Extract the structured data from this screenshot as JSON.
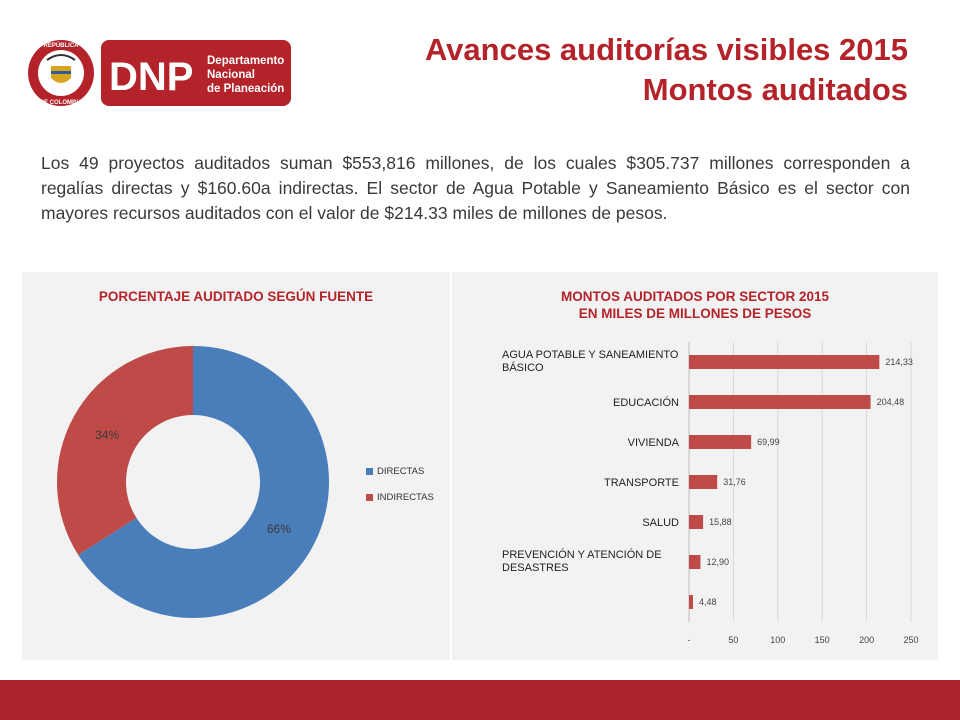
{
  "header": {
    "title_line1": "Avances auditorías visibles 2015",
    "title_line2": "Montos auditados",
    "logo": {
      "brand": "DNP",
      "line1": "Departamento",
      "line2": "Nacional",
      "line3": "de Planeación",
      "seal_top": "REPÚBLICA",
      "seal_bottom": "DE COLOMBIA"
    }
  },
  "intro_text": "Los 49 proyectos auditados suman $553,816 millones, de los cuales $305.737 millones corresponden a regalías directas y $160.60a indirectas. El sector de Agua Potable y Saneamiento Básico es el sector con mayores recursos auditados con el valor de $214.33 miles de millones de pesos.",
  "colors": {
    "accent": "#b4232a",
    "blue": "#4a7ebb",
    "red": "#be4b48",
    "panel": "#f2f2f2"
  },
  "chart_data": [
    {
      "type": "pie",
      "variant": "donut",
      "title": "PORCENTAJE AUDITADO SEGÚN FUENTE",
      "labels": [
        "DIRECTAS",
        "INDIRECTAS"
      ],
      "values": [
        66,
        34
      ],
      "data_labels": [
        "66%",
        "34%"
      ],
      "colors": [
        "#4a7ebb",
        "#be4b48"
      ],
      "legend": "right"
    },
    {
      "type": "bar",
      "orientation": "horizontal",
      "title_line1": "MONTOS AUDITADOS POR SECTOR 2015",
      "title_line2": "EN MILES DE MILLONES DE PESOS",
      "categories": [
        [
          "AGUA POTABLE Y SANEAMIENTO",
          "BÁSICO"
        ],
        [
          "EDUCACIÓN"
        ],
        [
          "VIVIENDA"
        ],
        [
          "TRANSPORTE"
        ],
        [
          "SALUD"
        ],
        [
          "PREVENCIÓN Y ATENCIÓN DE",
          "DESASTRES"
        ],
        [
          ""
        ]
      ],
      "values": [
        214.33,
        204.48,
        69.99,
        31.76,
        15.88,
        12.9,
        4.48
      ],
      "data_labels": [
        "214,33",
        "204,48",
        "69,99",
        "31,76",
        "15,88",
        "12,90",
        "4,48"
      ],
      "xlim": [
        0,
        250
      ],
      "xticks": [
        0,
        50,
        100,
        150,
        200,
        250
      ],
      "xtick_labels": [
        "-",
        "50",
        "100",
        "150",
        "200",
        "250"
      ],
      "grid": "vertical",
      "color": "#be4b48"
    }
  ]
}
